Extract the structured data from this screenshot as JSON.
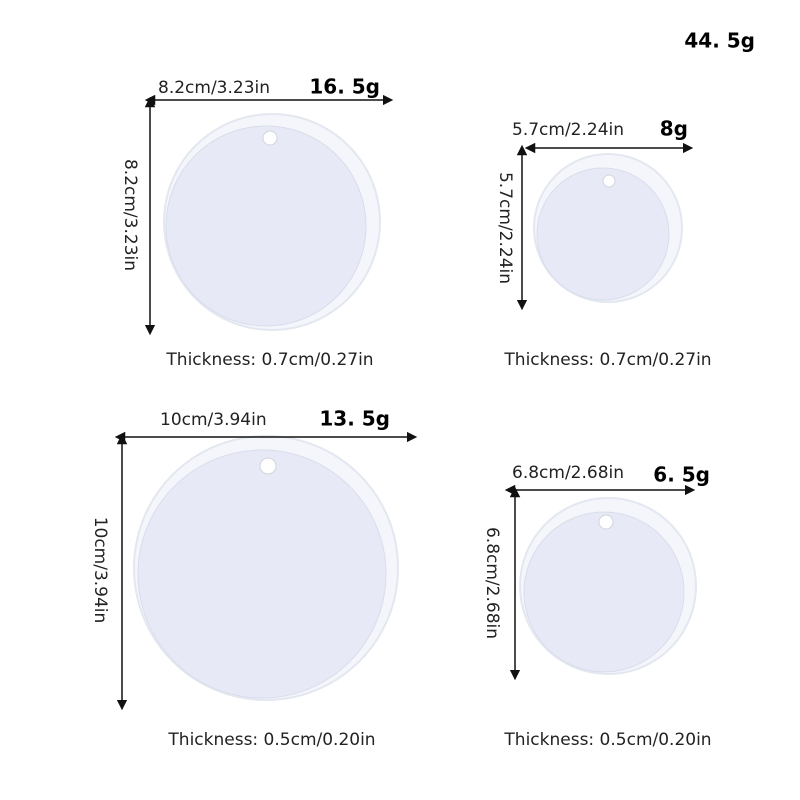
{
  "total_weight": "44. 5g",
  "items": [
    {
      "width_label": "8.2cm/3.23in",
      "height_label": "8.2cm/3.23in",
      "weight": "16. 5g",
      "thickness": "Thickness: 0.7cm/0.27in"
    },
    {
      "width_label": "5.7cm/2.24in",
      "height_label": "5.7cm/2.24in",
      "weight": "8g",
      "thickness": "Thickness: 0.7cm/0.27in"
    },
    {
      "width_label": "10cm/3.94in",
      "height_label": "10cm/3.94in",
      "weight": "13. 5g",
      "thickness": "Thickness: 0.5cm/0.20in"
    },
    {
      "width_label": "6.8cm/2.68in",
      "height_label": "6.8cm/2.68in",
      "weight": "6. 5g",
      "thickness": "Thickness: 0.5cm/0.20in"
    }
  ]
}
